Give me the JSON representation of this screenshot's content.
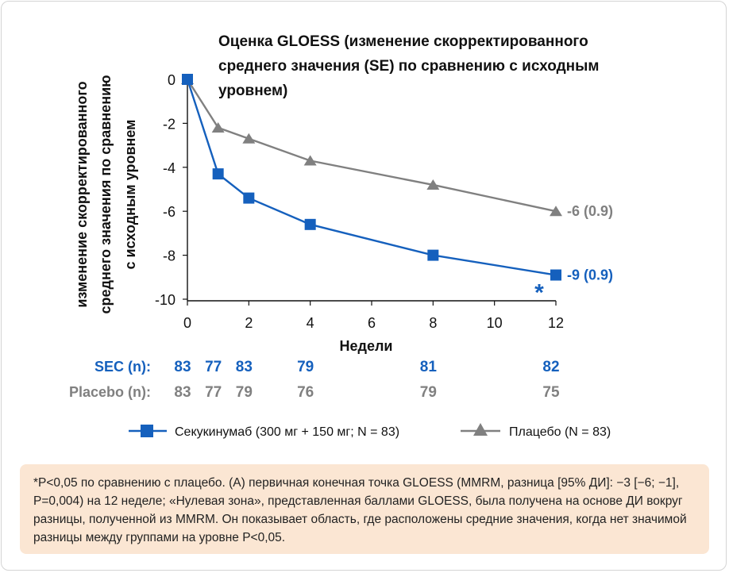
{
  "chart_data": {
    "type": "line",
    "title": "Оценка GLOESS (изменение скорректированного среднего значения (SE) по сравнению с исходным уровнем)",
    "title_lines": [
      "Оценка GLOESS (изменение скорректированного",
      "среднего значения (SE) по сравнению с исходным",
      "уровнем)"
    ],
    "ylabel": "изменение скорректированного среднего значения по сравнению с исходным уровнем",
    "ylabel_lines": [
      "изменение скорректированного",
      "среднего значения по сравнению",
      "с исходным уровнем"
    ],
    "xlabel": "Недели",
    "xlim": [
      0,
      12
    ],
    "ylim": [
      -10,
      0
    ],
    "xticks": [
      0,
      2,
      4,
      6,
      8,
      10,
      12
    ],
    "yticks": [
      0,
      -2,
      -4,
      -6,
      -8,
      -10
    ],
    "series": [
      {
        "name": "Секукинумаб (300 мг + 150 мг; N = 83)",
        "color": "#1560bd",
        "marker": "square",
        "x": [
          0,
          1,
          2,
          4,
          8,
          12
        ],
        "y": [
          0,
          -4.3,
          -5.4,
          -6.6,
          -8.0,
          -8.9
        ],
        "end_label": "-9 (0.9)",
        "significance_marker": "*"
      },
      {
        "name": "Плацебо (N = 83)",
        "color": "#808080",
        "marker": "triangle",
        "x": [
          0,
          1,
          2,
          4,
          8,
          12
        ],
        "y": [
          0,
          -2.2,
          -2.7,
          -3.7,
          -4.8,
          -6.0
        ],
        "end_label": "-6 (0.9)"
      }
    ],
    "n_at_risk": {
      "weeks": [
        0,
        1,
        2,
        4,
        8,
        12
      ],
      "rows": [
        {
          "label": "SEC (n):",
          "color": "#1560bd",
          "values": [
            "83",
            "77",
            "83",
            "79",
            "81",
            "82"
          ]
        },
        {
          "label": "Placebo (n):",
          "color": "#808080",
          "values": [
            "83",
            "77",
            "79",
            "76",
            "79",
            "75"
          ]
        }
      ]
    }
  },
  "footnote": "*P<0,05 по сравнению с плацебо. (A) первичная конечная точка GLOESS (MMRM, разница [95% ДИ]: −3 [−6; −1], P=0,004) на 12 неделе; «Нулевая зона», представленная баллами GLOESS, была получена на основе ДИ вокруг разницы, полученной из MMRM. Он показывает область, где расположены средние значения, когда нет значимой разницы между группами на уровне P<0,05."
}
